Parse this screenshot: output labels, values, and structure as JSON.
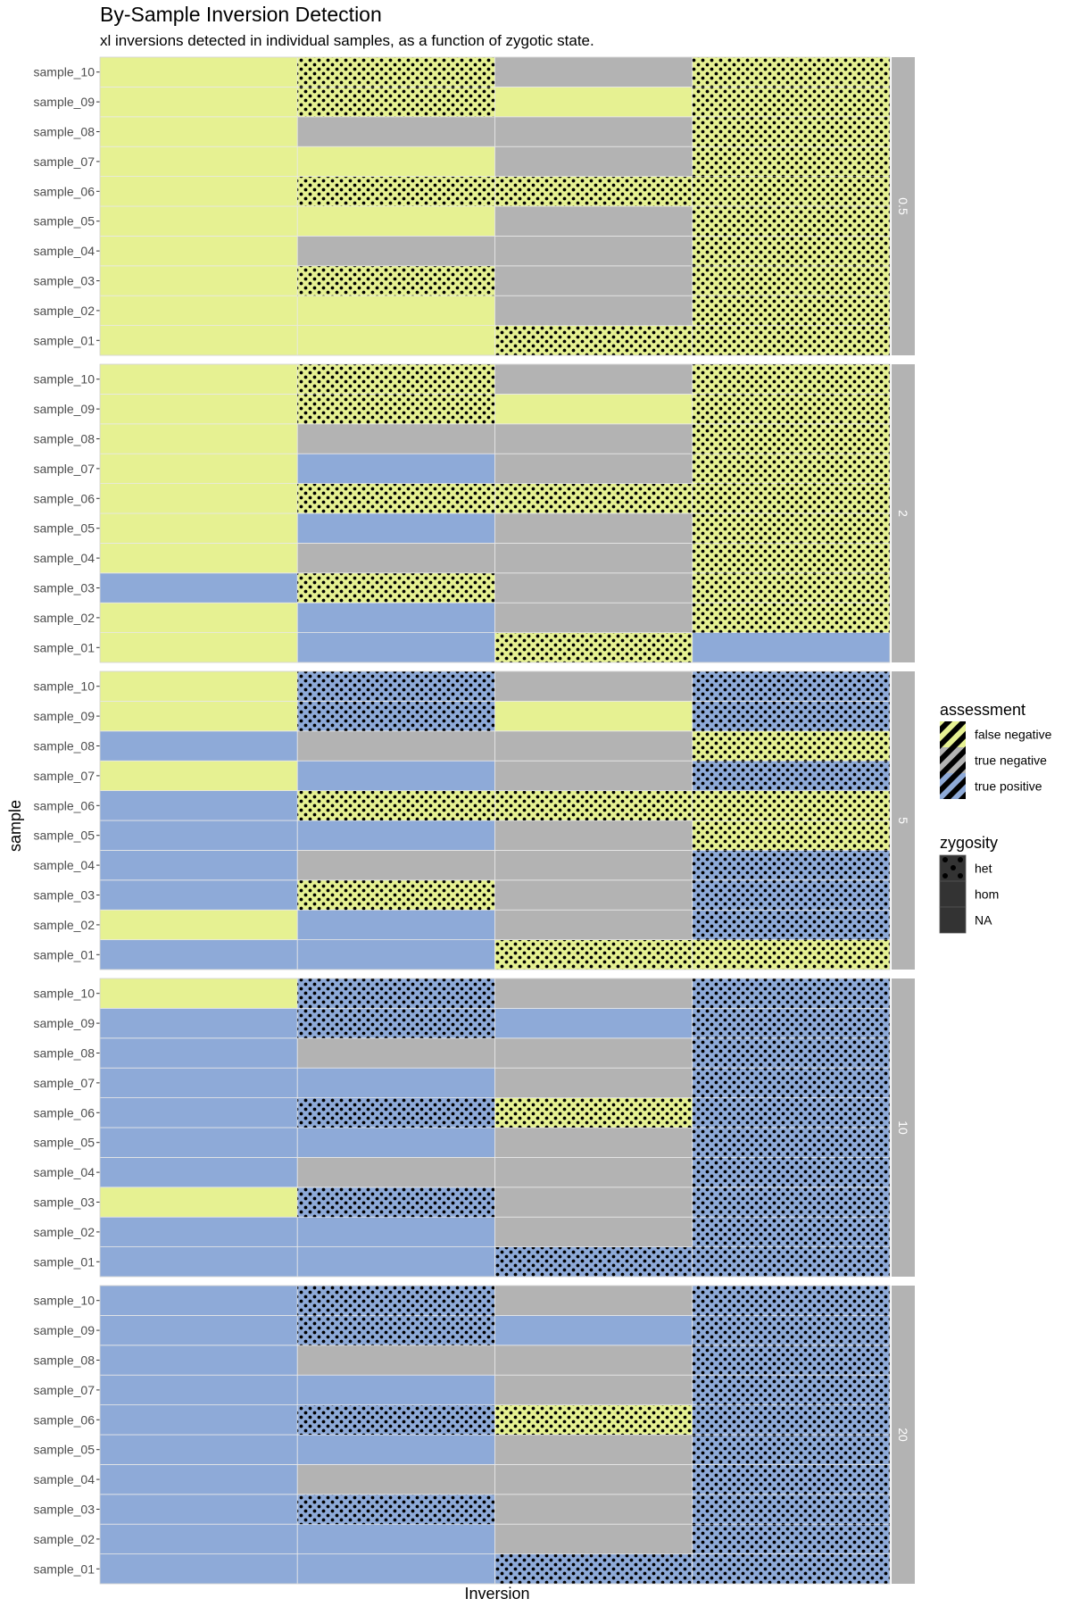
{
  "chart_data": {
    "type": "heatmap",
    "title": "By-Sample Inversion Detection",
    "subtitle": "xl inversions detected in individual samples, as a function of zygotic state.",
    "xlabel": "Inversion",
    "ylabel": "sample",
    "samples": [
      "sample_01",
      "sample_02",
      "sample_03",
      "sample_04",
      "sample_05",
      "sample_06",
      "sample_07",
      "sample_08",
      "sample_09",
      "sample_10"
    ],
    "columns": 4,
    "code_key": {
      "F": "false negative / hom",
      "N": "true negative / hom",
      "P": "true positive / hom",
      "f": "false negative / het",
      "n": "true negative / het",
      "p": "true positive / het"
    },
    "facets": [
      {
        "label": "0.5",
        "rows": {
          "sample_10": [
            "F",
            "f",
            "N",
            "f"
          ],
          "sample_09": [
            "F",
            "f",
            "F",
            "f"
          ],
          "sample_08": [
            "F",
            "N",
            "N",
            "f"
          ],
          "sample_07": [
            "F",
            "F",
            "N",
            "f"
          ],
          "sample_06": [
            "F",
            "f",
            "f",
            "f"
          ],
          "sample_05": [
            "F",
            "F",
            "N",
            "f"
          ],
          "sample_04": [
            "F",
            "N",
            "N",
            "f"
          ],
          "sample_03": [
            "F",
            "f",
            "N",
            "f"
          ],
          "sample_02": [
            "F",
            "F",
            "N",
            "f"
          ],
          "sample_01": [
            "F",
            "F",
            "f",
            "f"
          ]
        }
      },
      {
        "label": "2",
        "rows": {
          "sample_10": [
            "F",
            "f",
            "N",
            "f"
          ],
          "sample_09": [
            "F",
            "f",
            "F",
            "f"
          ],
          "sample_08": [
            "F",
            "N",
            "N",
            "f"
          ],
          "sample_07": [
            "F",
            "P",
            "N",
            "f"
          ],
          "sample_06": [
            "F",
            "f",
            "f",
            "f"
          ],
          "sample_05": [
            "F",
            "P",
            "N",
            "f"
          ],
          "sample_04": [
            "F",
            "N",
            "N",
            "f"
          ],
          "sample_03": [
            "P",
            "f",
            "N",
            "f"
          ],
          "sample_02": [
            "F",
            "P",
            "N",
            "f"
          ],
          "sample_01": [
            "F",
            "P",
            "f",
            "P"
          ]
        }
      },
      {
        "label": "5",
        "rows": {
          "sample_10": [
            "F",
            "p",
            "N",
            "p"
          ],
          "sample_09": [
            "F",
            "p",
            "F",
            "p"
          ],
          "sample_08": [
            "P",
            "N",
            "N",
            "f"
          ],
          "sample_07": [
            "F",
            "P",
            "N",
            "p"
          ],
          "sample_06": [
            "P",
            "f",
            "f",
            "f"
          ],
          "sample_05": [
            "P",
            "P",
            "N",
            "f"
          ],
          "sample_04": [
            "P",
            "N",
            "N",
            "p"
          ],
          "sample_03": [
            "P",
            "f",
            "N",
            "p"
          ],
          "sample_02": [
            "F",
            "P",
            "N",
            "p"
          ],
          "sample_01": [
            "P",
            "P",
            "f",
            "f"
          ]
        }
      },
      {
        "label": "10",
        "rows": {
          "sample_10": [
            "F",
            "p",
            "N",
            "p"
          ],
          "sample_09": [
            "P",
            "p",
            "P",
            "p"
          ],
          "sample_08": [
            "P",
            "N",
            "N",
            "p"
          ],
          "sample_07": [
            "P",
            "P",
            "N",
            "p"
          ],
          "sample_06": [
            "P",
            "p",
            "f",
            "p"
          ],
          "sample_05": [
            "P",
            "P",
            "N",
            "p"
          ],
          "sample_04": [
            "P",
            "N",
            "N",
            "p"
          ],
          "sample_03": [
            "F",
            "p",
            "N",
            "p"
          ],
          "sample_02": [
            "P",
            "P",
            "N",
            "p"
          ],
          "sample_01": [
            "P",
            "P",
            "p",
            "p"
          ]
        }
      },
      {
        "label": "20",
        "rows": {
          "sample_10": [
            "P",
            "p",
            "N",
            "p"
          ],
          "sample_09": [
            "P",
            "p",
            "P",
            "p"
          ],
          "sample_08": [
            "P",
            "N",
            "N",
            "p"
          ],
          "sample_07": [
            "P",
            "P",
            "N",
            "p"
          ],
          "sample_06": [
            "P",
            "p",
            "f",
            "p"
          ],
          "sample_05": [
            "P",
            "P",
            "N",
            "p"
          ],
          "sample_04": [
            "P",
            "N",
            "N",
            "p"
          ],
          "sample_03": [
            "P",
            "p",
            "N",
            "p"
          ],
          "sample_02": [
            "P",
            "P",
            "N",
            "p"
          ],
          "sample_01": [
            "P",
            "P",
            "p",
            "p"
          ]
        }
      }
    ],
    "legend": {
      "placement": "right",
      "assessment": {
        "title": "assessment",
        "items": [
          {
            "label": "false negative",
            "color": "#e6f192"
          },
          {
            "label": "true negative",
            "color": "#b3b3b3"
          },
          {
            "label": "true positive",
            "color": "#8eaad8"
          }
        ]
      },
      "zygosity": {
        "title": "zygosity",
        "items": [
          {
            "label": "het",
            "pattern": "dots"
          },
          {
            "label": "hom",
            "pattern": "none"
          },
          {
            "label": "NA",
            "pattern": "none"
          }
        ]
      }
    },
    "colors": {
      "false_negative": "#e6f192",
      "true_negative": "#b3b3b3",
      "true_positive": "#8eaad8",
      "strip_background": "#b3b3b3",
      "cell_border": "#e8e8e8"
    },
    "grid": false
  }
}
